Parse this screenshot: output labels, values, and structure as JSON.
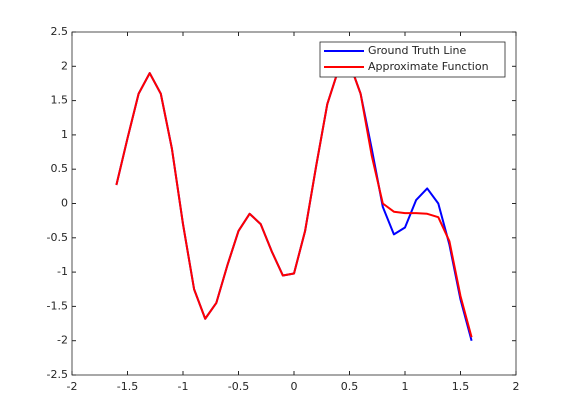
{
  "chart_data": {
    "type": "line",
    "x": [
      -1.6,
      -1.5,
      -1.4,
      -1.3,
      -1.2,
      -1.1,
      -1.0,
      -0.9,
      -0.8,
      -0.7,
      -0.6,
      -0.5,
      -0.4,
      -0.3,
      -0.2,
      -0.1,
      0.0,
      0.1,
      0.2,
      0.3,
      0.4,
      0.5,
      0.6,
      0.7,
      0.8,
      0.9,
      1.0,
      1.1,
      1.2,
      1.3,
      1.4,
      1.5,
      1.6
    ],
    "series": [
      {
        "name": "Ground Truth Line",
        "color": "#0000ff",
        "values": [
          0.27,
          0.95,
          1.6,
          1.9,
          1.6,
          0.8,
          -0.3,
          -1.25,
          -1.68,
          -1.45,
          -0.9,
          -0.4,
          -0.15,
          -0.3,
          -0.7,
          -1.05,
          -1.02,
          -0.4,
          0.55,
          1.45,
          1.95,
          2.05,
          1.6,
          0.8,
          -0.05,
          -0.45,
          -0.35,
          0.05,
          0.22,
          0.0,
          -0.6,
          -1.4,
          -2.0
        ]
      },
      {
        "name": "Approximate Function",
        "color": "#ff0000",
        "values": [
          0.27,
          0.95,
          1.6,
          1.9,
          1.6,
          0.8,
          -0.3,
          -1.25,
          -1.68,
          -1.45,
          -0.9,
          -0.4,
          -0.15,
          -0.3,
          -0.7,
          -1.05,
          -1.02,
          -0.4,
          0.55,
          1.45,
          1.95,
          2.05,
          1.6,
          0.7,
          0.0,
          -0.12,
          -0.14,
          -0.14,
          -0.15,
          -0.2,
          -0.55,
          -1.35,
          -1.95
        ]
      }
    ],
    "xlim": [
      -2,
      2
    ],
    "xticks": [
      -2,
      -1.5,
      -1,
      -0.5,
      0,
      0.5,
      1,
      1.5,
      2
    ],
    "ylim": [
      -2.5,
      2.5
    ],
    "yticks": [
      -2.5,
      -2,
      -1.5,
      -1,
      -0.5,
      0,
      0.5,
      1,
      1.5,
      2,
      2.5
    ],
    "legend": "northeast"
  }
}
